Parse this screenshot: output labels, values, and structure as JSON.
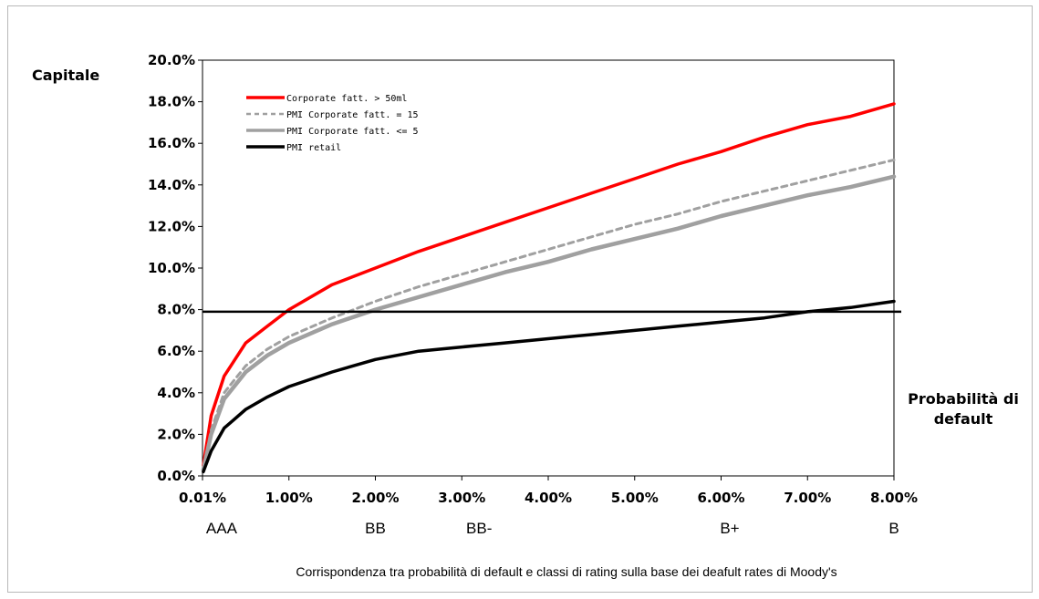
{
  "chart_data": {
    "type": "line",
    "ylabel": "Capitale",
    "xlabel_lines": [
      "Probabilità di",
      "default"
    ],
    "caption": "Corrispondenza tra probabilità di default e classi di rating sulla base dei deafult rates di Moody's",
    "x_ticks": [
      "0.01%",
      "1.00%",
      "2.00%",
      "3.00%",
      "4.00%",
      "5.00%",
      "6.00%",
      "7.00%",
      "8.00%"
    ],
    "y_ticks": [
      "0.0%",
      "2.0%",
      "4.0%",
      "6.0%",
      "8.0%",
      "10.0%",
      "12.0%",
      "14.0%",
      "16.0%",
      "18.0%",
      "20.0%"
    ],
    "xlim": [
      0.0,
      8.0
    ],
    "ylim": [
      0,
      20
    ],
    "ratings": [
      {
        "label": "AAA",
        "x": 0.01
      },
      {
        "label": "BB",
        "x": 2.0
      },
      {
        "label": "BB-",
        "x": 3.2
      },
      {
        "label": "B+",
        "x": 6.1
      },
      {
        "label": "B",
        "x": 8.0
      }
    ],
    "reference_line": {
      "y": 7.9
    },
    "series": [
      {
        "name": "Corporate fatt. > 50ml",
        "color": "#ff0000",
        "style": "solid",
        "x": [
          0.01,
          0.1,
          0.25,
          0.5,
          0.75,
          1.0,
          1.5,
          2.0,
          2.5,
          3.0,
          3.5,
          4.0,
          4.5,
          5.0,
          5.5,
          6.0,
          6.5,
          7.0,
          7.5,
          8.0
        ],
        "y": [
          0.5,
          2.9,
          4.8,
          6.4,
          7.2,
          8.0,
          9.2,
          10.0,
          10.8,
          11.5,
          12.2,
          12.9,
          13.6,
          14.3,
          15.0,
          15.6,
          16.3,
          16.9,
          17.3,
          17.9
        ]
      },
      {
        "name": "PMI Corporate fatt. = 15",
        "color": "#a0a0a0",
        "style": "dashed",
        "x": [
          0.01,
          0.1,
          0.25,
          0.5,
          0.75,
          1.0,
          1.5,
          2.0,
          2.5,
          3.0,
          3.5,
          4.0,
          4.5,
          5.0,
          5.5,
          6.0,
          6.5,
          7.0,
          7.5,
          8.0
        ],
        "y": [
          0.3,
          2.2,
          4.0,
          5.3,
          6.1,
          6.7,
          7.6,
          8.4,
          9.1,
          9.7,
          10.3,
          10.9,
          11.5,
          12.1,
          12.6,
          13.2,
          13.7,
          14.2,
          14.7,
          15.2
        ]
      },
      {
        "name": "PMI Corporate fatt. <= 5",
        "color": "#a0a0a0",
        "style": "solid",
        "x": [
          0.01,
          0.1,
          0.25,
          0.5,
          0.75,
          1.0,
          1.5,
          2.0,
          2.5,
          3.0,
          3.5,
          4.0,
          4.5,
          5.0,
          5.5,
          6.0,
          6.5,
          7.0,
          7.5,
          8.0
        ],
        "y": [
          0.3,
          2.0,
          3.7,
          5.0,
          5.8,
          6.4,
          7.3,
          8.0,
          8.6,
          9.2,
          9.8,
          10.3,
          10.9,
          11.4,
          11.9,
          12.5,
          13.0,
          13.5,
          13.9,
          14.4
        ]
      },
      {
        "name": "PMI retail",
        "color": "#000000",
        "style": "solid",
        "x": [
          0.01,
          0.1,
          0.25,
          0.5,
          0.75,
          1.0,
          1.5,
          2.0,
          2.5,
          3.0,
          3.5,
          4.0,
          4.5,
          5.0,
          5.5,
          6.0,
          6.5,
          7.0,
          7.5,
          8.0
        ],
        "y": [
          0.2,
          1.2,
          2.3,
          3.2,
          3.8,
          4.3,
          5.0,
          5.6,
          6.0,
          6.2,
          6.4,
          6.6,
          6.8,
          7.0,
          7.2,
          7.4,
          7.6,
          7.9,
          8.1,
          8.4
        ]
      }
    ]
  }
}
